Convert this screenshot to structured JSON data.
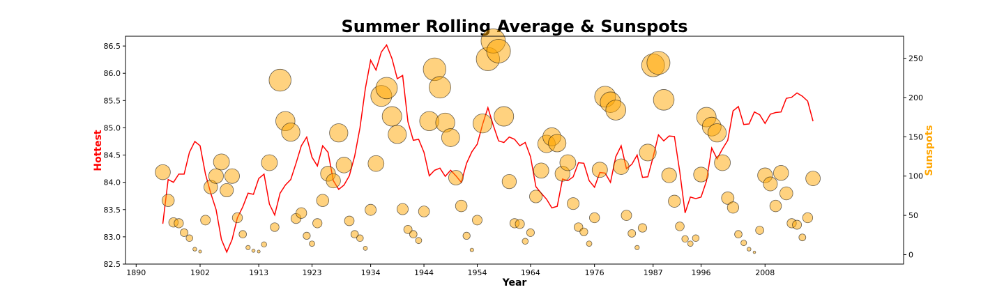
{
  "chart_data": {
    "type": "line+scatter",
    "title": "Summer Rolling Average & Sunspots",
    "xlabel": "Year",
    "ylabel_left": "Hottest",
    "ylabel_right": "Sunspots",
    "colors": {
      "line": "#ff0000",
      "bubble_fill": "#ffa500",
      "ylabel_left": "#ff0000",
      "ylabel_right": "#ffa500"
    },
    "xlim": [
      1888,
      2034
    ],
    "ylim_left": [
      82.5,
      86.68
    ],
    "ylim_right": [
      -12,
      278
    ],
    "x_ticks": [
      1890,
      1902,
      1913,
      1923,
      1934,
      1944,
      1954,
      1964,
      1976,
      1987,
      1996,
      2008
    ],
    "y_left_ticks": [
      "82.5",
      "83.0",
      "83.5",
      "84.0",
      "84.5",
      "85.0",
      "85.5",
      "86.0",
      "86.5"
    ],
    "y_right_ticks": [
      "0",
      "50",
      "100",
      "150",
      "200",
      "250"
    ],
    "series": [
      {
        "name": "Hottest",
        "type": "line",
        "x": [
          1895,
          1896,
          1897,
          1898,
          1899,
          1900,
          1901,
          1902,
          1903,
          1904,
          1905,
          1906,
          1907,
          1908,
          1909,
          1910,
          1911,
          1912,
          1913,
          1914,
          1915,
          1916,
          1917,
          1918,
          1919,
          1920,
          1921,
          1922,
          1923,
          1924,
          1925,
          1926,
          1927,
          1928,
          1929,
          1930,
          1931,
          1932,
          1933,
          1934,
          1935,
          1936,
          1937,
          1938,
          1939,
          1940,
          1941,
          1942,
          1943,
          1944,
          1945,
          1946,
          1947,
          1948,
          1949,
          1950,
          1951,
          1952,
          1953,
          1954,
          1955,
          1956,
          1957,
          1958,
          1959,
          1960,
          1961,
          1962,
          1963,
          1964,
          1965,
          1966,
          1967,
          1968,
          1969,
          1970,
          1971,
          1972,
          1973,
          1974,
          1975,
          1976,
          1977,
          1978,
          1979,
          1980,
          1981,
          1982,
          1983,
          1984,
          1985,
          1986,
          1987,
          1988,
          1989,
          1990,
          1991,
          1992,
          1993,
          1994,
          1995,
          1996,
          1997,
          1998,
          1999,
          2000,
          2001,
          2002,
          2003,
          2004,
          2005,
          2006,
          2007,
          2008,
          2009,
          2010,
          2011,
          2012,
          2013,
          2014,
          2015,
          2016,
          2017
        ],
        "values": [
          83.24,
          84.05,
          84.0,
          84.15,
          84.15,
          84.55,
          84.75,
          84.67,
          84.15,
          83.8,
          83.5,
          82.95,
          82.72,
          82.95,
          83.35,
          83.55,
          83.8,
          83.78,
          84.07,
          84.15,
          83.6,
          83.4,
          83.8,
          83.95,
          84.05,
          84.35,
          84.67,
          84.83,
          84.46,
          84.3,
          84.67,
          84.55,
          84.03,
          83.87,
          83.95,
          84.12,
          84.48,
          85.0,
          85.72,
          86.24,
          86.06,
          86.39,
          86.52,
          86.27,
          85.9,
          85.96,
          85.11,
          84.77,
          84.79,
          84.55,
          84.12,
          84.22,
          84.26,
          84.11,
          84.22,
          84.12,
          84.0,
          84.35,
          84.56,
          84.7,
          85.06,
          85.37,
          85.05,
          84.76,
          84.73,
          84.83,
          84.79,
          84.67,
          84.73,
          84.47,
          83.92,
          83.8,
          83.69,
          83.53,
          83.56,
          84.06,
          84.03,
          84.1,
          84.36,
          84.35,
          84.03,
          83.91,
          84.18,
          84.17,
          84.0,
          84.47,
          84.67,
          84.25,
          84.33,
          84.5,
          84.09,
          84.1,
          84.46,
          84.87,
          84.76,
          84.85,
          84.84,
          84.19,
          83.44,
          83.73,
          83.7,
          83.73,
          84.02,
          84.63,
          84.43,
          84.61,
          84.77,
          85.31,
          85.39,
          85.06,
          85.07,
          85.29,
          85.24,
          85.08,
          85.25,
          85.28,
          85.29,
          85.54,
          85.56,
          85.64,
          85.58,
          85.49,
          85.12
        ]
      },
      {
        "name": "Sunspots",
        "type": "scatter",
        "x": [
          1895,
          1896,
          1897,
          1898,
          1899,
          1900,
          1901,
          1902,
          1903,
          1904,
          1905,
          1906,
          1907,
          1908,
          1909,
          1910,
          1911,
          1912,
          1913,
          1914,
          1915,
          1916,
          1917,
          1918,
          1919,
          1920,
          1921,
          1922,
          1923,
          1924,
          1925,
          1926,
          1927,
          1928,
          1929,
          1930,
          1931,
          1932,
          1933,
          1934,
          1935,
          1936,
          1937,
          1938,
          1939,
          1940,
          1941,
          1942,
          1943,
          1944,
          1945,
          1946,
          1947,
          1948,
          1949,
          1950,
          1951,
          1952,
          1953,
          1954,
          1955,
          1956,
          1957,
          1958,
          1959,
          1960,
          1961,
          1962,
          1963,
          1964,
          1965,
          1966,
          1967,
          1968,
          1969,
          1970,
          1971,
          1972,
          1973,
          1974,
          1975,
          1976,
          1977,
          1978,
          1979,
          1980,
          1981,
          1982,
          1983,
          1984,
          1985,
          1986,
          1987,
          1988,
          1989,
          1990,
          1991,
          1992,
          1993,
          1994,
          1995,
          1996,
          1997,
          1998,
          1999,
          2000,
          2001,
          2002,
          2003,
          2004,
          2005,
          2006,
          2007,
          2008,
          2009,
          2010,
          2011,
          2012,
          2013,
          2014,
          2015,
          2016,
          2017
        ],
        "values": [
          105,
          69,
          41,
          40,
          28,
          21,
          7,
          4,
          44,
          86,
          100,
          118,
          82,
          100,
          47,
          26,
          9,
          5,
          4,
          13,
          117,
          35,
          222,
          170,
          156,
          46,
          53,
          24,
          14,
          40,
          69,
          103,
          94,
          155,
          114,
          43,
          26,
          21,
          8,
          57,
          116,
          202,
          212,
          176,
          153,
          58,
          32,
          26,
          18,
          55,
          170,
          236,
          213,
          168,
          149,
          98,
          62,
          24,
          6,
          44,
          167,
          249,
          272,
          259,
          176,
          93,
          40,
          39,
          17,
          28,
          74,
          107,
          141,
          150,
          142,
          103,
          117,
          65,
          35,
          29,
          14,
          47,
          108,
          201,
          194,
          184,
          112,
          50,
          27,
          9,
          34,
          130,
          241,
          244,
          197,
          101,
          68,
          36,
          20,
          14,
          21,
          102,
          175,
          163,
          155,
          117,
          72,
          60,
          26,
          15,
          7,
          3,
          31,
          101,
          90,
          62,
          104,
          78,
          40,
          38,
          22,
          47,
          97
        ]
      }
    ]
  }
}
